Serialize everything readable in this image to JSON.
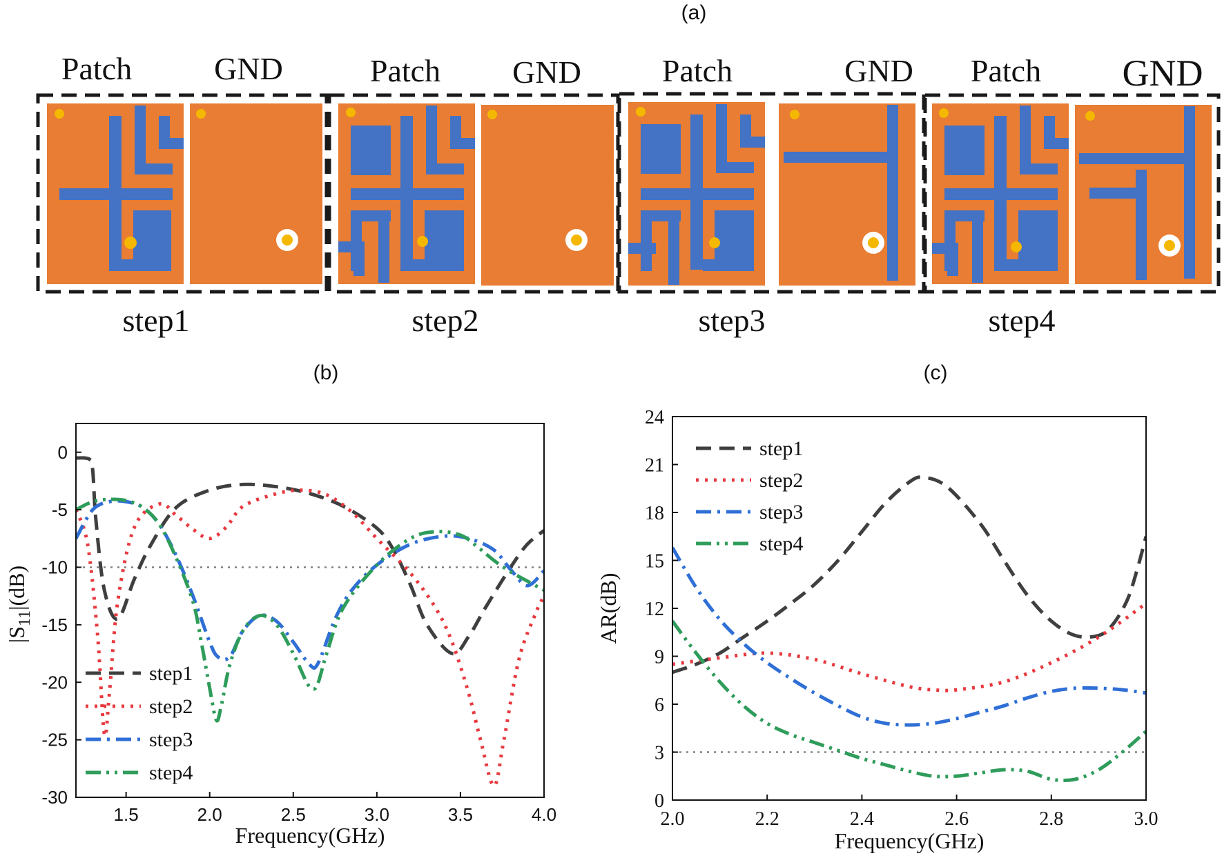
{
  "panel_a": {
    "label": "(a)",
    "top_labels": {
      "patch": "Patch",
      "gnd": "GND"
    },
    "steps": [
      {
        "name": "step1"
      },
      {
        "name": "step2"
      },
      {
        "name": "step3"
      },
      {
        "name": "step4"
      }
    ],
    "colors": {
      "substrate": "#e87d33",
      "metal": "#4472c4",
      "feed": "#f5b800",
      "frame": "#1a1a1a"
    }
  },
  "chart_data": [
    {
      "panel_label": "(b)",
      "type": "line",
      "title": "",
      "xlabel": "Frequency(GHz)",
      "ylabel_parts": {
        "pre": "|S",
        "sub": "11",
        "post": "|(dB)"
      },
      "xlim": [
        1.2,
        4.0
      ],
      "ylim": [
        -30,
        2.5
      ],
      "xticks": [
        1.5,
        2.0,
        2.5,
        3.0,
        3.5,
        4.0
      ],
      "xtick_labels": [
        "1.5",
        "2.0",
        "2.5",
        "3.0",
        "3.5",
        "4.0"
      ],
      "yticks": [
        0,
        -5,
        -10,
        -15,
        -20,
        -25,
        -30
      ],
      "ytick_labels": [
        "0",
        "-5",
        "-10",
        "-15",
        "-20",
        "-25",
        "-30"
      ],
      "reference_line": {
        "y": -10,
        "style": "dotted"
      },
      "legend_position": "bottom-left",
      "series": [
        {
          "name": "step1",
          "color": "#3f3f3f",
          "dash": "dash",
          "x": [
            1.2,
            1.28,
            1.3,
            1.32,
            1.37,
            1.45,
            1.55,
            1.65,
            1.8,
            2.0,
            2.2,
            2.4,
            2.6,
            2.8,
            3.0,
            3.1,
            3.2,
            3.3,
            3.45,
            3.55,
            3.65,
            3.8,
            3.9,
            4.0
          ],
          "y": [
            -0.5,
            -0.6,
            -1.5,
            -6,
            -12,
            -14.5,
            -11,
            -8,
            -4.8,
            -3.3,
            -2.8,
            -3.0,
            -3.6,
            -4.7,
            -6.6,
            -8.5,
            -11.5,
            -15,
            -17.5,
            -16,
            -13.5,
            -10,
            -8,
            -6.8
          ]
        },
        {
          "name": "step2",
          "color": "#e8393f",
          "dash": "dot",
          "x": [
            1.2,
            1.27,
            1.33,
            1.37,
            1.4,
            1.45,
            1.55,
            1.7,
            1.8,
            1.9,
            2.0,
            2.1,
            2.2,
            2.4,
            2.55,
            2.7,
            2.85,
            3.0,
            3.2,
            3.35,
            3.45,
            3.55,
            3.62,
            3.7,
            3.76,
            3.85,
            3.95,
            4.0
          ],
          "y": [
            -5,
            -8,
            -16,
            -24.5,
            -21,
            -13,
            -6.5,
            -4.5,
            -5.5,
            -6.7,
            -7.5,
            -6.5,
            -4.7,
            -3.6,
            -3.3,
            -3.7,
            -5.2,
            -7.5,
            -10.5,
            -13.5,
            -16.5,
            -21,
            -25,
            -29,
            -25,
            -18,
            -14,
            -12.5
          ]
        },
        {
          "name": "step3",
          "color": "#2f6fd6",
          "dash": "dashdot",
          "x": [
            1.2,
            1.3,
            1.4,
            1.5,
            1.6,
            1.7,
            1.8,
            1.9,
            2.0,
            2.05,
            2.12,
            2.2,
            2.3,
            2.4,
            2.5,
            2.6,
            2.65,
            2.75,
            2.85,
            3.0,
            3.2,
            3.4,
            3.55,
            3.7,
            3.8,
            3.9,
            4.0
          ],
          "y": [
            -7.5,
            -5,
            -4.3,
            -4.3,
            -4.8,
            -6.3,
            -9,
            -12.5,
            -16.5,
            -17.8,
            -17.8,
            -15.5,
            -14.2,
            -14.7,
            -16.5,
            -18.5,
            -18.3,
            -14.5,
            -12,
            -9.8,
            -8,
            -7.3,
            -7.5,
            -8.5,
            -10.2,
            -11.6,
            -10.3
          ]
        },
        {
          "name": "step4",
          "color": "#2e9c5a",
          "dash": "dashdotdot",
          "x": [
            1.2,
            1.3,
            1.4,
            1.5,
            1.6,
            1.7,
            1.8,
            1.9,
            1.95,
            2.0,
            2.04,
            2.07,
            2.12,
            2.2,
            2.3,
            2.4,
            2.5,
            2.58,
            2.62,
            2.65,
            2.7,
            2.8,
            3.0,
            3.2,
            3.35,
            3.5,
            3.6,
            3.7,
            3.8,
            3.9,
            4.0
          ],
          "y": [
            -5,
            -4.3,
            -4.1,
            -4.2,
            -4.8,
            -6.3,
            -9.2,
            -13,
            -16.5,
            -20.5,
            -23.3,
            -22,
            -18.5,
            -15.5,
            -14.2,
            -15,
            -17.5,
            -20,
            -20.6,
            -20,
            -17.5,
            -13.5,
            -9.8,
            -7.5,
            -6.9,
            -7.2,
            -8.2,
            -9.4,
            -10.4,
            -11.2,
            -12
          ]
        }
      ]
    },
    {
      "panel_label": "(c)",
      "type": "line",
      "title": "",
      "xlabel": "Frequency(GHz)",
      "ylabel": "AR(dB)",
      "xlim": [
        2.0,
        3.0
      ],
      "ylim": [
        0,
        24
      ],
      "xticks": [
        2.0,
        2.2,
        2.4,
        2.6,
        2.8,
        3.0
      ],
      "xtick_labels": [
        "2.0",
        "2.2",
        "2.4",
        "2.6",
        "2.8",
        "3.0"
      ],
      "yticks": [
        0,
        3,
        6,
        9,
        12,
        15,
        18,
        21,
        24
      ],
      "ytick_labels": [
        "0",
        "3",
        "6",
        "9",
        "12",
        "15",
        "18",
        "21",
        "24"
      ],
      "reference_line": {
        "y": 3,
        "style": "dotted"
      },
      "legend_position": "top-left",
      "series": [
        {
          "name": "step1",
          "color": "#3f3f3f",
          "dash": "dash",
          "x": [
            2.0,
            2.05,
            2.1,
            2.15,
            2.2,
            2.25,
            2.3,
            2.35,
            2.4,
            2.45,
            2.5,
            2.53,
            2.58,
            2.65,
            2.7,
            2.75,
            2.8,
            2.85,
            2.9,
            2.93,
            2.96,
            2.98,
            3.0
          ],
          "y": [
            8,
            8.5,
            9.2,
            10.2,
            11.2,
            12.3,
            13.5,
            15,
            16.8,
            18.6,
            19.9,
            20.2,
            19.6,
            17.3,
            15,
            12.8,
            11.2,
            10.3,
            10.3,
            11,
            12.5,
            14.3,
            16.5
          ]
        },
        {
          "name": "step2",
          "color": "#e8393f",
          "dash": "dot",
          "x": [
            2.0,
            2.1,
            2.2,
            2.3,
            2.4,
            2.5,
            2.55,
            2.6,
            2.7,
            2.8,
            2.9,
            3.0
          ],
          "y": [
            8.5,
            8.9,
            9.2,
            8.8,
            7.9,
            7.1,
            6.9,
            6.9,
            7.4,
            8.6,
            10.2,
            12.3
          ]
        },
        {
          "name": "step3",
          "color": "#2f6fd6",
          "dash": "dashdot",
          "x": [
            2.0,
            2.05,
            2.1,
            2.15,
            2.2,
            2.25,
            2.3,
            2.35,
            2.4,
            2.45,
            2.5,
            2.55,
            2.6,
            2.65,
            2.7,
            2.75,
            2.8,
            2.85,
            2.9,
            2.95,
            3.0
          ],
          "y": [
            15.8,
            13.3,
            11.3,
            9.8,
            8.6,
            7.6,
            6.7,
            5.9,
            5.2,
            4.8,
            4.7,
            4.8,
            5.1,
            5.5,
            5.9,
            6.4,
            6.8,
            7.0,
            7.0,
            6.9,
            6.7
          ]
        },
        {
          "name": "step4",
          "color": "#2e9c5a",
          "dash": "dashdotdot",
          "x": [
            2.0,
            2.05,
            2.1,
            2.15,
            2.2,
            2.25,
            2.3,
            2.35,
            2.4,
            2.45,
            2.5,
            2.55,
            2.6,
            2.65,
            2.7,
            2.75,
            2.8,
            2.85,
            2.9,
            2.95,
            3.0
          ],
          "y": [
            11.2,
            9.2,
            7.4,
            5.9,
            4.8,
            4.1,
            3.6,
            3.1,
            2.6,
            2.2,
            1.8,
            1.5,
            1.5,
            1.7,
            1.9,
            1.8,
            1.3,
            1.3,
            1.9,
            3.0,
            4.3
          ]
        }
      ]
    }
  ]
}
